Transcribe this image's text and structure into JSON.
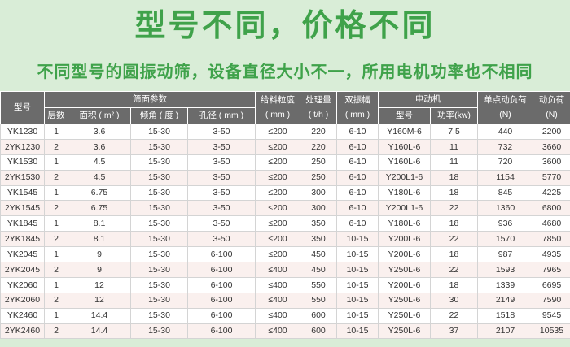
{
  "page": {
    "title": "型号不同，价格不同",
    "subtitle": "不同型号的圆振动筛，设备直径大小不一，所用电机功率也不相同"
  },
  "colors": {
    "background_green": "#d9edd7",
    "title_green": "#3fa24a",
    "header_bg": "#6b6b6b",
    "header_text": "#ffffff",
    "row_alt_pink": "#faf0ee",
    "row_white": "#ffffff",
    "cell_border": "#d4d4d4",
    "cell_text": "#333333"
  },
  "table": {
    "header": {
      "model": "型号",
      "screen_params_group": "筛面参数",
      "layers": "层数",
      "area": "面积 ( m² )",
      "incline": "倾角 ( 度 )",
      "aperture": "孔径 ( mm )",
      "feed_size": "给料粒度\n( mm )",
      "capacity": "处理量\n( t/h )",
      "double_amplitude": "双振幅\n( mm )",
      "motor_group": "电动机",
      "motor_model": "型号",
      "motor_power": "功率(kw)",
      "single_point_load": "单点动负荷\n(N)",
      "dynamic_load": "动负荷\n(N)"
    },
    "rows": [
      [
        "YK1230",
        "1",
        "3.6",
        "15-30",
        "3-50",
        "≤200",
        "220",
        "6-10",
        "Y160M-6",
        "7.5",
        "440",
        "2200"
      ],
      [
        "2YK1230",
        "2",
        "3.6",
        "15-30",
        "3-50",
        "≤200",
        "220",
        "6-10",
        "Y160L-6",
        "11",
        "732",
        "3660"
      ],
      [
        "YK1530",
        "1",
        "4.5",
        "15-30",
        "3-50",
        "≤200",
        "250",
        "6-10",
        "Y160L-6",
        "11",
        "720",
        "3600"
      ],
      [
        "2YK1530",
        "2",
        "4.5",
        "15-30",
        "3-50",
        "≤200",
        "250",
        "6-10",
        "Y200L1-6",
        "18",
        "1154",
        "5770"
      ],
      [
        "YK1545",
        "1",
        "6.75",
        "15-30",
        "3-50",
        "≤200",
        "300",
        "6-10",
        "Y180L-6",
        "18",
        "845",
        "4225"
      ],
      [
        "2YK1545",
        "2",
        "6.75",
        "15-30",
        "3-50",
        "≤200",
        "300",
        "6-10",
        "Y200L1-6",
        "22",
        "1360",
        "6800"
      ],
      [
        "YK1845",
        "1",
        "8.1",
        "15-30",
        "3-50",
        "≤200",
        "350",
        "6-10",
        "Y180L-6",
        "18",
        "936",
        "4680"
      ],
      [
        "2YK1845",
        "2",
        "8.1",
        "15-30",
        "3-50",
        "≤200",
        "350",
        "10-15",
        "Y200L-6",
        "22",
        "1570",
        "7850"
      ],
      [
        "YK2045",
        "1",
        "9",
        "15-30",
        "6-100",
        "≤200",
        "450",
        "10-15",
        "Y200L-6",
        "18",
        "987",
        "4935"
      ],
      [
        "2YK2045",
        "2",
        "9",
        "15-30",
        "6-100",
        "≤400",
        "450",
        "10-15",
        "Y250L-6",
        "22",
        "1593",
        "7965"
      ],
      [
        "YK2060",
        "1",
        "12",
        "15-30",
        "6-100",
        "≤400",
        "550",
        "10-15",
        "Y200L-6",
        "18",
        "1339",
        "6695"
      ],
      [
        "2YK2060",
        "2",
        "12",
        "15-30",
        "6-100",
        "≤400",
        "550",
        "10-15",
        "Y250L-6",
        "30",
        "2149",
        "7590"
      ],
      [
        "YK2460",
        "1",
        "14.4",
        "15-30",
        "6-100",
        "≤400",
        "600",
        "10-15",
        "Y250L-6",
        "22",
        "1518",
        "9545"
      ],
      [
        "2YK2460",
        "2",
        "14.4",
        "15-30",
        "6-100",
        "≤400",
        "600",
        "10-15",
        "Y250L-6",
        "37",
        "2107",
        "10535"
      ]
    ]
  }
}
